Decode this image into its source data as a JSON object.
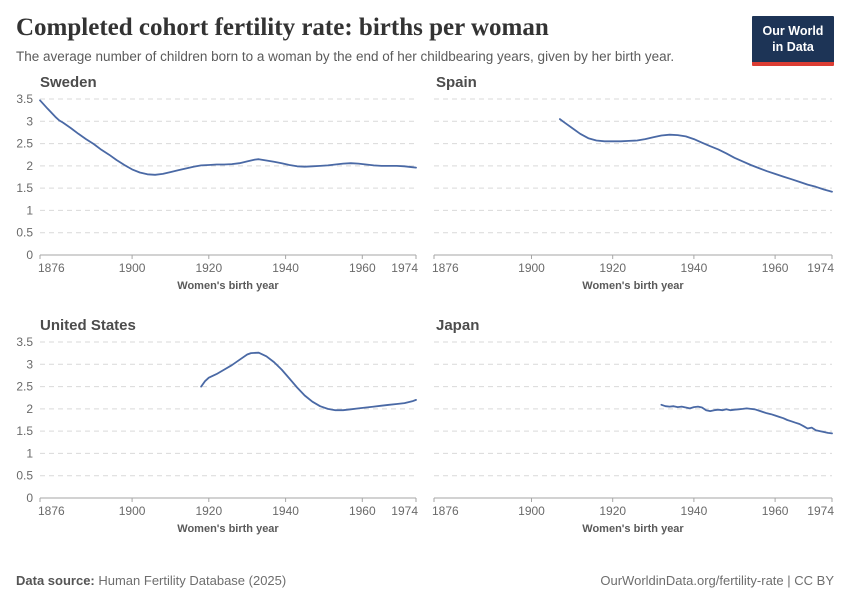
{
  "header": {
    "title": "Completed cohort fertility rate: births per woman",
    "subtitle": "The average number of children born to a woman by the end of her childbearing years, given by her birth year.",
    "logo": {
      "line1": "Our World",
      "line2": "in Data",
      "bg_color": "#1d3456",
      "accent_color": "#dc3d33"
    }
  },
  "footer": {
    "source_label": "Data source:",
    "source_value": " Human Fertility Database (2025)",
    "url": "OurWorldinData.org/fertility-rate",
    "separator": " | ",
    "license": "CC BY"
  },
  "chart_data": {
    "type": "line",
    "layout": "2x2-small-multiples",
    "title": "Completed cohort fertility rate: births per woman",
    "xlabel": "Women's birth year",
    "ylabel": "",
    "x_range": [
      1876,
      1974
    ],
    "y_range": [
      0,
      3.5
    ],
    "x_ticks": [
      1876,
      1900,
      1920,
      1940,
      1960,
      1974
    ],
    "y_ticks": [
      0,
      0.5,
      1,
      1.5,
      2,
      2.5,
      3,
      3.5
    ],
    "grid": "dashed-horizontal",
    "legend": "none",
    "colors": {
      "line": "#4a69a5",
      "grid": "#d9d9d9",
      "axis": "#a6a6a6"
    },
    "facets": [
      {
        "title": "Sweden",
        "show_y_labels": true,
        "points": [
          [
            1876,
            3.47
          ],
          [
            1878,
            3.28
          ],
          [
            1880,
            3.1
          ],
          [
            1881,
            3.02
          ],
          [
            1882,
            2.97
          ],
          [
            1884,
            2.85
          ],
          [
            1886,
            2.72
          ],
          [
            1888,
            2.6
          ],
          [
            1890,
            2.49
          ],
          [
            1892,
            2.36
          ],
          [
            1894,
            2.25
          ],
          [
            1896,
            2.13
          ],
          [
            1898,
            2.02
          ],
          [
            1900,
            1.92
          ],
          [
            1902,
            1.85
          ],
          [
            1904,
            1.81
          ],
          [
            1906,
            1.8
          ],
          [
            1908,
            1.82
          ],
          [
            1910,
            1.86
          ],
          [
            1912,
            1.9
          ],
          [
            1914,
            1.94
          ],
          [
            1916,
            1.98
          ],
          [
            1918,
            2.01
          ],
          [
            1920,
            2.02
          ],
          [
            1922,
            2.03
          ],
          [
            1924,
            2.03
          ],
          [
            1926,
            2.04
          ],
          [
            1928,
            2.06
          ],
          [
            1930,
            2.1
          ],
          [
            1932,
            2.14
          ],
          [
            1933,
            2.15
          ],
          [
            1935,
            2.12
          ],
          [
            1937,
            2.09
          ],
          [
            1939,
            2.06
          ],
          [
            1941,
            2.02
          ],
          [
            1943,
            1.99
          ],
          [
            1945,
            1.98
          ],
          [
            1947,
            1.99
          ],
          [
            1949,
            2.0
          ],
          [
            1951,
            2.01
          ],
          [
            1953,
            2.03
          ],
          [
            1955,
            2.05
          ],
          [
            1957,
            2.06
          ],
          [
            1959,
            2.05
          ],
          [
            1961,
            2.03
          ],
          [
            1963,
            2.01
          ],
          [
            1965,
            2.0
          ],
          [
            1967,
            2.0
          ],
          [
            1969,
            2.0
          ],
          [
            1971,
            1.99
          ],
          [
            1973,
            1.97
          ],
          [
            1974,
            1.96
          ]
        ]
      },
      {
        "title": "Spain",
        "show_y_labels": false,
        "points": [
          [
            1907,
            3.05
          ],
          [
            1908,
            2.98
          ],
          [
            1910,
            2.85
          ],
          [
            1912,
            2.72
          ],
          [
            1914,
            2.62
          ],
          [
            1916,
            2.57
          ],
          [
            1918,
            2.55
          ],
          [
            1920,
            2.55
          ],
          [
            1922,
            2.55
          ],
          [
            1924,
            2.56
          ],
          [
            1926,
            2.57
          ],
          [
            1928,
            2.6
          ],
          [
            1930,
            2.64
          ],
          [
            1932,
            2.68
          ],
          [
            1934,
            2.7
          ],
          [
            1936,
            2.69
          ],
          [
            1938,
            2.66
          ],
          [
            1940,
            2.6
          ],
          [
            1942,
            2.52
          ],
          [
            1944,
            2.44
          ],
          [
            1946,
            2.37
          ],
          [
            1948,
            2.28
          ],
          [
            1950,
            2.18
          ],
          [
            1952,
            2.1
          ],
          [
            1954,
            2.02
          ],
          [
            1956,
            1.95
          ],
          [
            1958,
            1.88
          ],
          [
            1960,
            1.82
          ],
          [
            1962,
            1.76
          ],
          [
            1964,
            1.7
          ],
          [
            1966,
            1.64
          ],
          [
            1968,
            1.58
          ],
          [
            1970,
            1.53
          ],
          [
            1972,
            1.47
          ],
          [
            1974,
            1.42
          ]
        ]
      },
      {
        "title": "United States",
        "show_y_labels": true,
        "points": [
          [
            1918,
            2.5
          ],
          [
            1919,
            2.62
          ],
          [
            1920,
            2.7
          ],
          [
            1922,
            2.78
          ],
          [
            1924,
            2.88
          ],
          [
            1926,
            2.98
          ],
          [
            1928,
            3.1
          ],
          [
            1930,
            3.22
          ],
          [
            1931,
            3.25
          ],
          [
            1933,
            3.26
          ],
          [
            1935,
            3.18
          ],
          [
            1937,
            3.05
          ],
          [
            1939,
            2.88
          ],
          [
            1941,
            2.68
          ],
          [
            1943,
            2.48
          ],
          [
            1945,
            2.3
          ],
          [
            1947,
            2.16
          ],
          [
            1949,
            2.06
          ],
          [
            1951,
            2.0
          ],
          [
            1953,
            1.97
          ],
          [
            1955,
            1.97
          ],
          [
            1957,
            1.99
          ],
          [
            1959,
            2.01
          ],
          [
            1961,
            2.03
          ],
          [
            1963,
            2.05
          ],
          [
            1965,
            2.07
          ],
          [
            1967,
            2.09
          ],
          [
            1969,
            2.11
          ],
          [
            1971,
            2.13
          ],
          [
            1973,
            2.17
          ],
          [
            1974,
            2.2
          ]
        ]
      },
      {
        "title": "Japan",
        "show_y_labels": false,
        "points": [
          [
            1932,
            2.09
          ],
          [
            1933,
            2.06
          ],
          [
            1934,
            2.05
          ],
          [
            1935,
            2.06
          ],
          [
            1936,
            2.04
          ],
          [
            1937,
            2.05
          ],
          [
            1938,
            2.03
          ],
          [
            1939,
            2.01
          ],
          [
            1940,
            2.04
          ],
          [
            1941,
            2.05
          ],
          [
            1942,
            2.03
          ],
          [
            1943,
            1.97
          ],
          [
            1944,
            1.95
          ],
          [
            1945,
            1.97
          ],
          [
            1946,
            1.98
          ],
          [
            1947,
            1.97
          ],
          [
            1948,
            1.99
          ],
          [
            1949,
            1.97
          ],
          [
            1950,
            1.98
          ],
          [
            1951,
            1.99
          ],
          [
            1952,
            2.0
          ],
          [
            1953,
            2.01
          ],
          [
            1954,
            2.0
          ],
          [
            1955,
            1.99
          ],
          [
            1956,
            1.96
          ],
          [
            1957,
            1.93
          ],
          [
            1958,
            1.9
          ],
          [
            1959,
            1.88
          ],
          [
            1960,
            1.85
          ],
          [
            1961,
            1.82
          ],
          [
            1962,
            1.79
          ],
          [
            1963,
            1.75
          ],
          [
            1964,
            1.72
          ],
          [
            1965,
            1.69
          ],
          [
            1966,
            1.66
          ],
          [
            1967,
            1.61
          ],
          [
            1968,
            1.56
          ],
          [
            1969,
            1.58
          ],
          [
            1970,
            1.52
          ],
          [
            1971,
            1.5
          ],
          [
            1972,
            1.48
          ],
          [
            1973,
            1.46
          ],
          [
            1974,
            1.45
          ]
        ]
      }
    ]
  }
}
